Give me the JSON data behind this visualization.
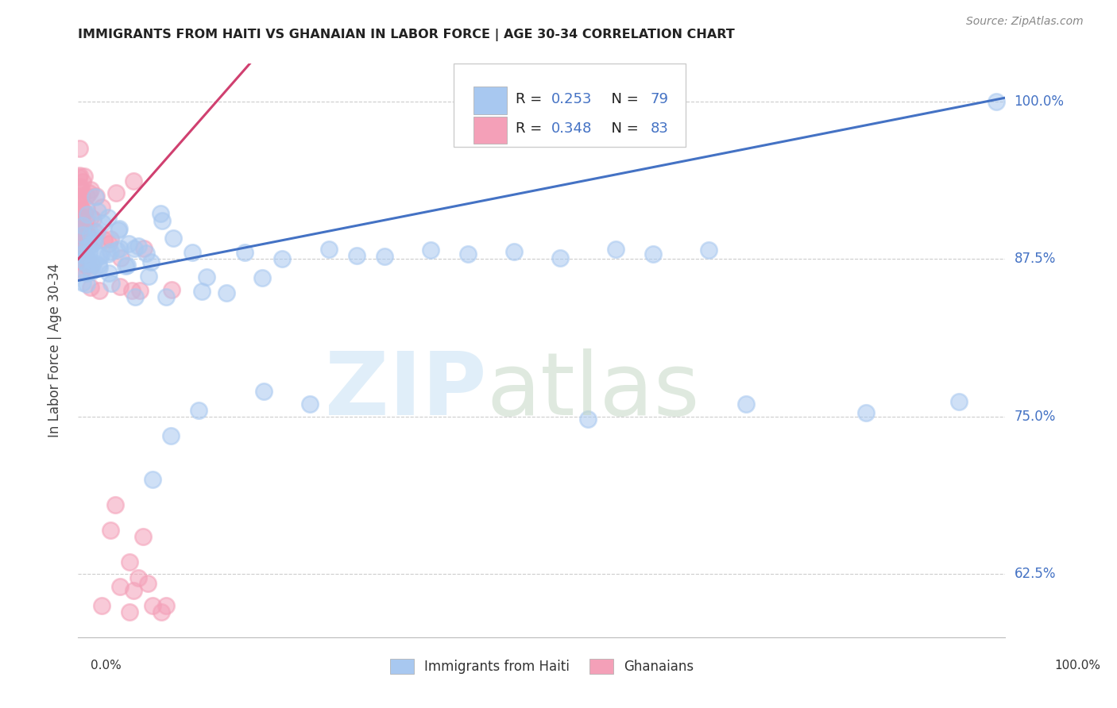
{
  "title": "IMMIGRANTS FROM HAITI VS GHANAIAN IN LABOR FORCE | AGE 30-34 CORRELATION CHART",
  "source": "Source: ZipAtlas.com",
  "ylabel": "In Labor Force | Age 30-34",
  "xlim": [
    0.0,
    1.0
  ],
  "ylim": [
    0.575,
    1.03
  ],
  "yticks": [
    0.625,
    0.75,
    0.875,
    1.0
  ],
  "ytick_labels": [
    "62.5%",
    "75.0%",
    "87.5%",
    "100.0%"
  ],
  "color_haiti": "#a8c8f0",
  "color_ghana": "#f4a0b8",
  "color_trendline_haiti": "#4472c4",
  "color_trendline_ghana": "#d04070",
  "color_ytick": "#4472c4",
  "background_color": "#ffffff",
  "haiti_trend_x0": 0.0,
  "haiti_trend_y0": 0.858,
  "haiti_trend_x1": 1.0,
  "haiti_trend_y1": 1.003,
  "ghana_trend_x0": 0.0,
  "ghana_trend_y0": 0.875,
  "ghana_trend_x1": 0.185,
  "ghana_trend_y1": 1.03
}
